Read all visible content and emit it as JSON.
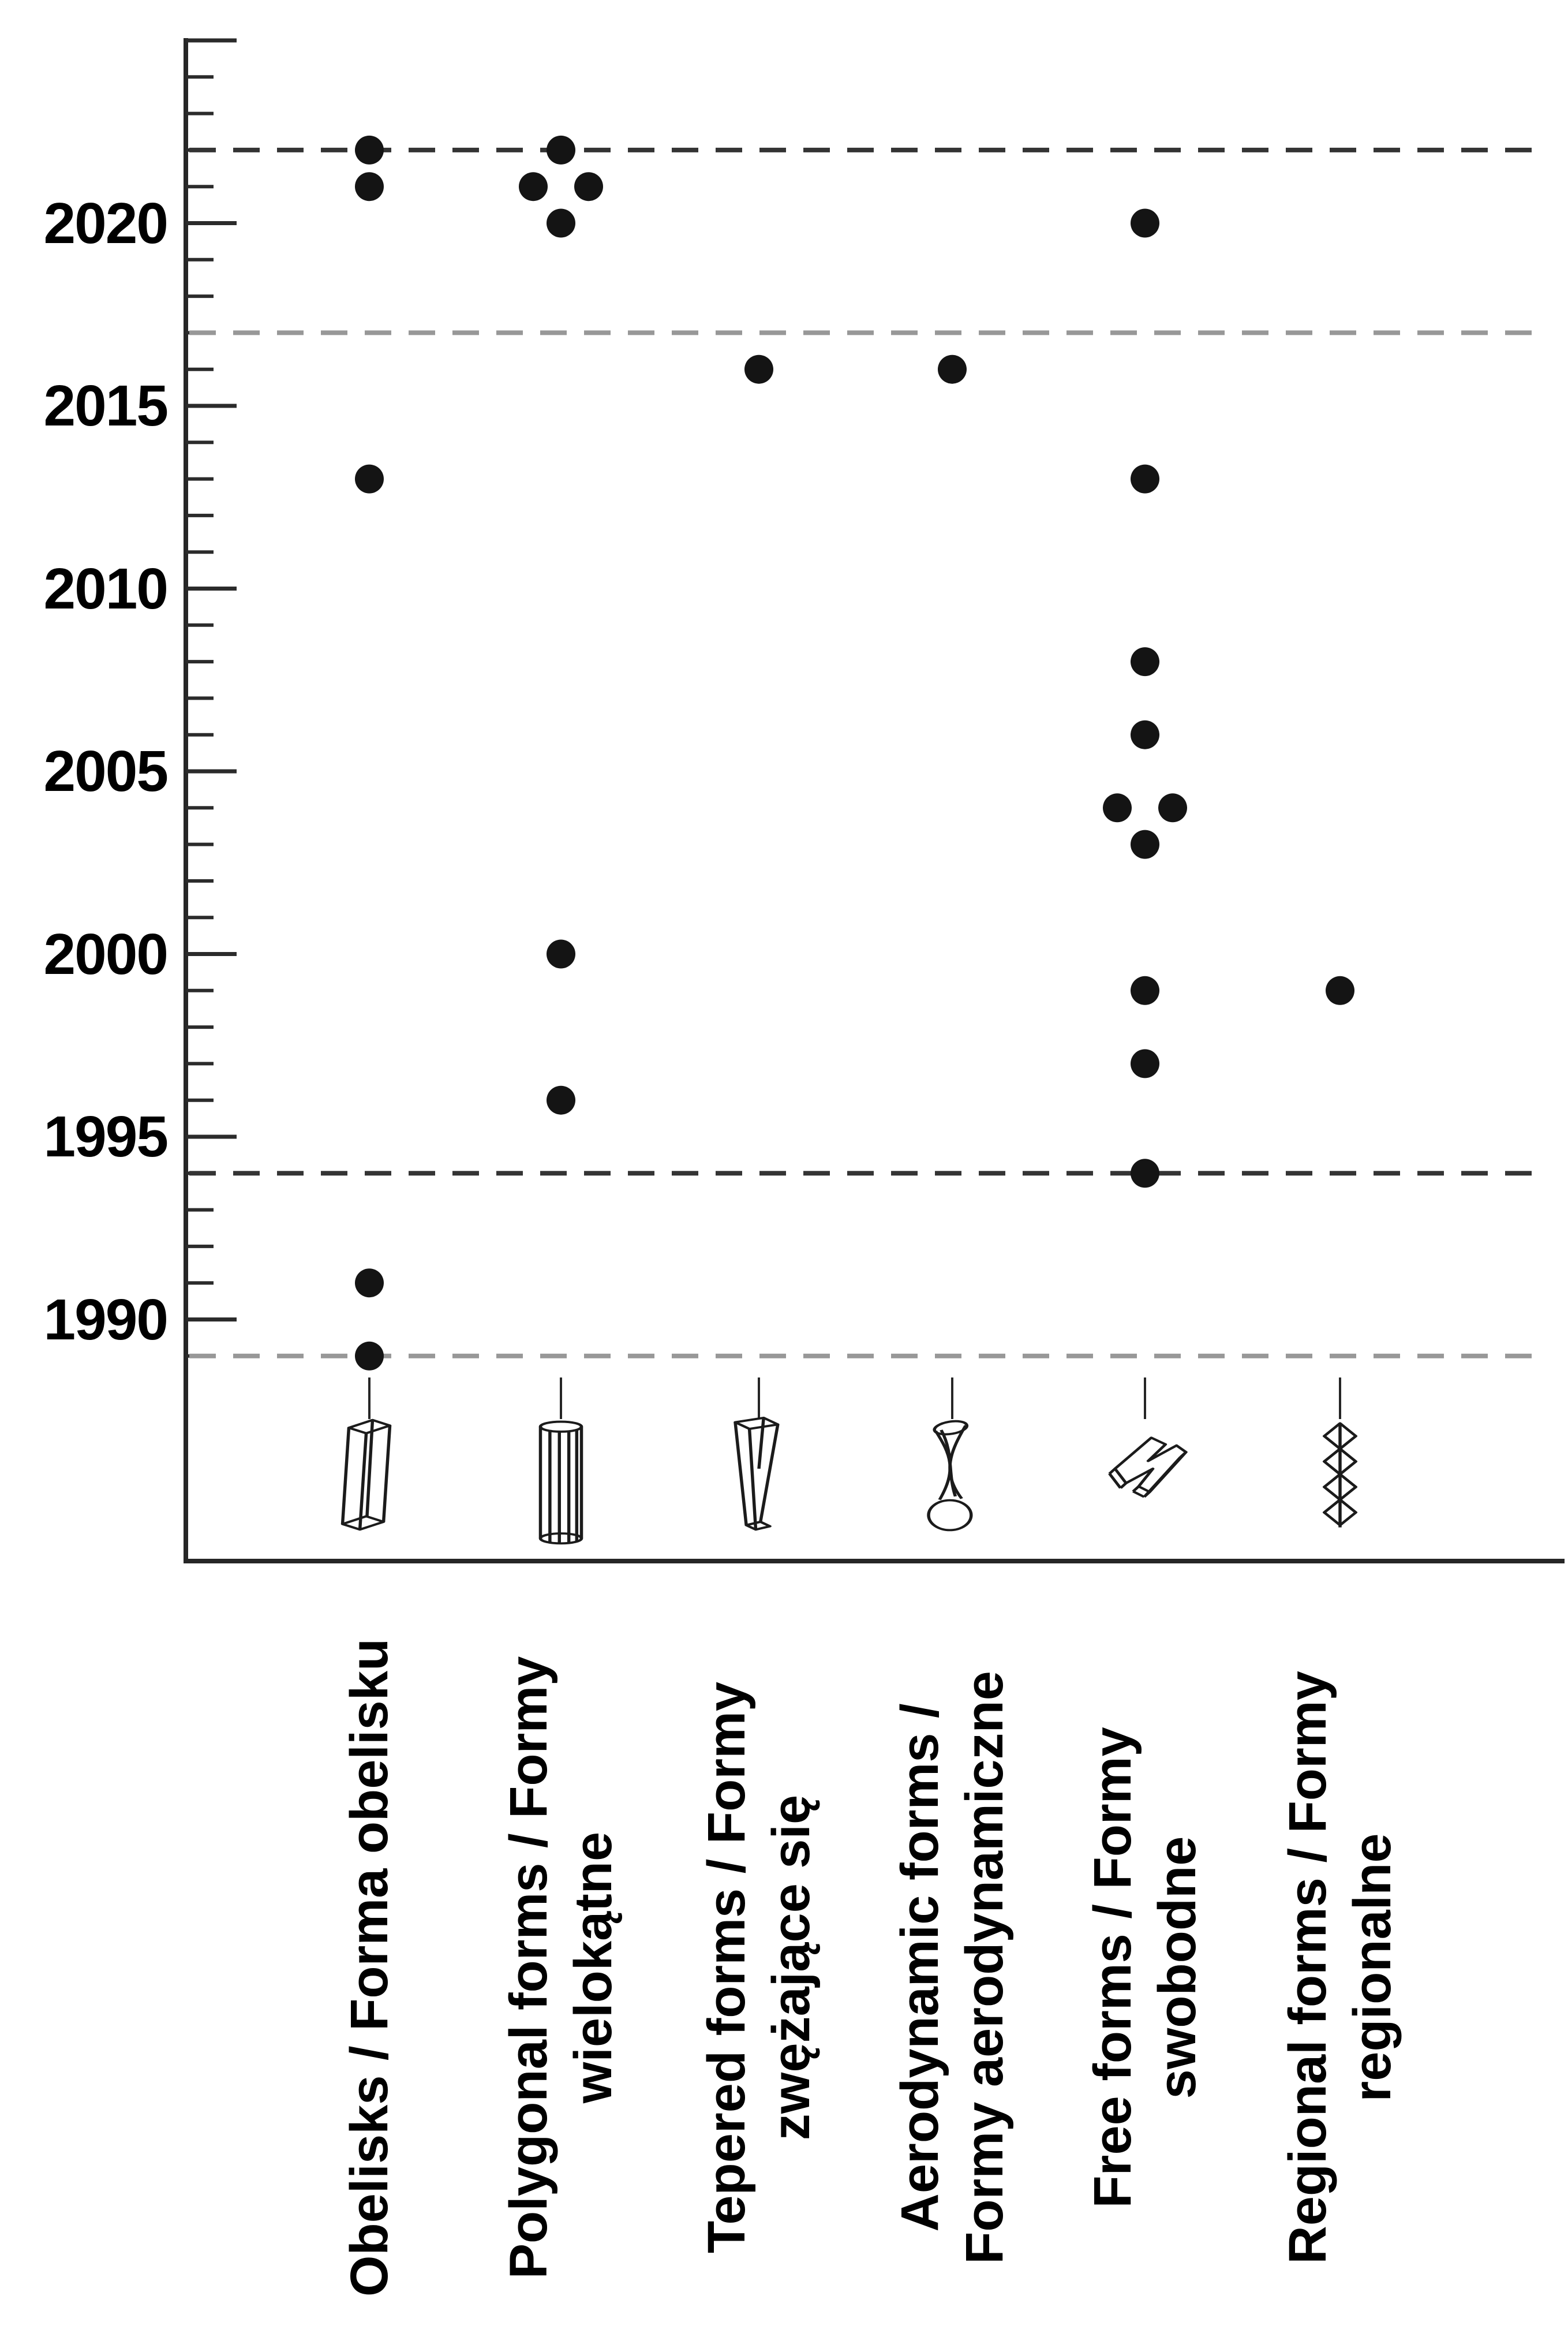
{
  "chart_data": {
    "type": "scatter",
    "title": "",
    "xlabel": "",
    "ylabel": "",
    "y_axis": {
      "labeled_tick_years": [
        2020,
        2015,
        2010,
        2005,
        2000,
        1995,
        1990
      ],
      "major_tick_years": [
        1990,
        1995,
        2000,
        2005,
        2010,
        2015,
        2020,
        2025
      ],
      "minor_tick_year_range": [
        1989,
        2024
      ],
      "axis_top_year": 2025,
      "grid": "off",
      "legend": "none"
    },
    "dashed_reference_lines": [
      {
        "year": 2022,
        "shade": "dark"
      },
      {
        "year": 2017,
        "shade": "light"
      },
      {
        "year": 1994,
        "shade": "dark"
      },
      {
        "year": 1989,
        "shade": "light"
      }
    ],
    "categories": [
      {
        "id": "obelisks",
        "label_lines": [
          "Obelisks / Forma obelisku"
        ],
        "icon": "obelisk-icon",
        "points": [
          {
            "year": 2022,
            "offset": 0
          },
          {
            "year": 2021,
            "offset": 0
          },
          {
            "year": 2013,
            "offset": 0
          },
          {
            "year": 1991,
            "offset": 0
          },
          {
            "year": 1989,
            "offset": 0
          }
        ]
      },
      {
        "id": "polygonal",
        "label_lines": [
          "Polygonal forms / Formy",
          "wielokątne"
        ],
        "icon": "polygonal-column-icon",
        "points": [
          {
            "year": 2022,
            "offset": 0
          },
          {
            "year": 2021,
            "offset": -1
          },
          {
            "year": 2021,
            "offset": 1
          },
          {
            "year": 2020,
            "offset": 0
          },
          {
            "year": 2000,
            "offset": 0
          },
          {
            "year": 1996,
            "offset": 0
          }
        ]
      },
      {
        "id": "tepered",
        "label_lines": [
          "Tepered forms / Formy",
          "zwężające się"
        ],
        "icon": "tapered-form-icon",
        "points": [
          {
            "year": 2016,
            "offset": 0
          }
        ]
      },
      {
        "id": "aerodynamic",
        "label_lines": [
          "Aerodynamic forms /",
          "Formy aerodynamiczne"
        ],
        "icon": "aerodynamic-form-icon",
        "points": [
          {
            "year": 2016,
            "offset": 0
          }
        ]
      },
      {
        "id": "free",
        "label_lines": [
          "Free forms / Formy",
          "swobodne"
        ],
        "icon": "free-form-icon",
        "points": [
          {
            "year": 2020,
            "offset": 0
          },
          {
            "year": 2013,
            "offset": 0
          },
          {
            "year": 2008,
            "offset": 0
          },
          {
            "year": 2006,
            "offset": 0
          },
          {
            "year": 2004,
            "offset": -1
          },
          {
            "year": 2004,
            "offset": 1
          },
          {
            "year": 2003,
            "offset": 0
          },
          {
            "year": 1999,
            "offset": 0
          },
          {
            "year": 1997,
            "offset": 0
          },
          {
            "year": 1994,
            "offset": 0
          }
        ]
      },
      {
        "id": "regional",
        "label_lines": [
          "Regional forms / Formy",
          "regionalne"
        ],
        "icon": "regional-form-icon",
        "points": [
          {
            "year": 1999,
            "offset": 0
          }
        ]
      }
    ],
    "colors": {
      "dot": "#141414",
      "axis": "#262626",
      "tick": "#2b2b2b",
      "dash_dark": "#343434",
      "dash_light": "#989898",
      "text": "#000000"
    }
  }
}
